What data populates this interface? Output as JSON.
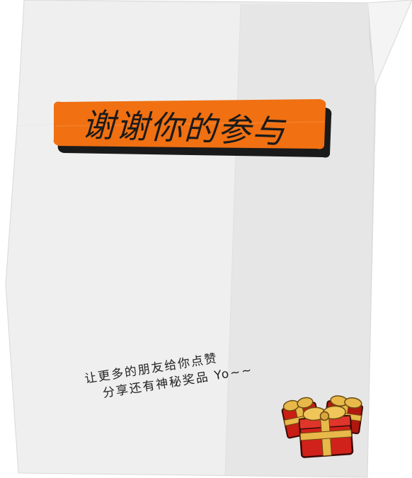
{
  "banner": {
    "title": "谢谢你的参与"
  },
  "message": {
    "line1": "让更多的朋友给你点赞",
    "line2": "分享还有神秘奖品 Yo~~"
  },
  "colors": {
    "banner_orange": "#f07012",
    "paper": "#ededed",
    "paper_shadow": "#dcdcdc",
    "gift_red": "#c81e14",
    "ribbon_gold": "#e8b84a"
  },
  "icons": {
    "gift": "gift-box-icon"
  }
}
